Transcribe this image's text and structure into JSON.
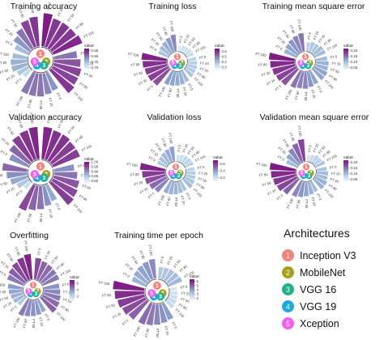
{
  "arch_colors": [
    "#f4837d",
    "#a5a11f",
    "#25b08c",
    "#1fa8e0",
    "#f25ff0"
  ],
  "colorbar_title": "value",
  "legend": {
    "title": "Architectures",
    "items": [
      {
        "num": "1",
        "label": "Inception V3"
      },
      {
        "num": "2",
        "label": "MobileNet"
      },
      {
        "num": "3",
        "label": "VGG 16"
      },
      {
        "num": "4",
        "label": "VGG 19"
      },
      {
        "num": "5",
        "label": "Xception"
      }
    ]
  },
  "chart_data": [
    {
      "type": "circular-bar",
      "title": "Training accuracy",
      "categories": [
        "FT 0",
        "FT 20",
        "FT 50",
        "FT 80",
        "FT 100"
      ],
      "colorbar_ticks": [
        "0.85",
        "0.80",
        "0.75",
        "0.70"
      ],
      "colorbar_range": [
        0.68,
        0.87
      ],
      "series": [
        {
          "values": [
            0.86,
            0.84,
            0.84,
            0.84,
            0.85
          ]
        },
        {
          "values": [
            0.8,
            0.82,
            0.83,
            0.83,
            0.84
          ]
        },
        {
          "values": [
            0.78,
            0.79,
            0.8,
            0.8,
            0.8
          ]
        },
        {
          "values": [
            0.72,
            0.74,
            0.76,
            0.76,
            0.75
          ]
        },
        {
          "values": [
            0.75,
            0.78,
            0.8,
            0.83,
            0.84
          ]
        }
      ]
    },
    {
      "type": "circular-bar",
      "title": "Training loss",
      "categories": [
        "FT 0",
        "FT 20",
        "FT 50",
        "FT 80",
        "FT 100"
      ],
      "colorbar_ticks": [
        "0.6",
        "0.5",
        "0.4",
        "0.3"
      ],
      "colorbar_range": [
        0.25,
        0.65
      ],
      "series": [
        {
          "values": [
            0.3,
            0.32,
            0.32,
            0.33,
            0.33
          ]
        },
        {
          "values": [
            0.35,
            0.36,
            0.37,
            0.37,
            0.38
          ]
        },
        {
          "values": [
            0.4,
            0.42,
            0.43,
            0.44,
            0.45
          ]
        },
        {
          "values": [
            0.55,
            0.57,
            0.58,
            0.6,
            0.62
          ]
        },
        {
          "values": [
            0.38,
            0.4,
            0.42,
            0.45,
            0.48
          ]
        }
      ]
    },
    {
      "type": "circular-bar",
      "title": "Training mean square error",
      "categories": [
        "FT 0",
        "FT 20",
        "FT 50",
        "FT 80",
        "FT 100"
      ],
      "colorbar_ticks": [
        "0.20",
        "0.15",
        "0.10",
        "0.05"
      ],
      "colorbar_range": [
        0.03,
        0.22
      ],
      "series": [
        {
          "values": [
            0.08,
            0.09,
            0.09,
            0.1,
            0.1
          ]
        },
        {
          "values": [
            0.1,
            0.11,
            0.11,
            0.12,
            0.12
          ]
        },
        {
          "values": [
            0.12,
            0.13,
            0.14,
            0.14,
            0.15
          ]
        },
        {
          "values": [
            0.17,
            0.18,
            0.19,
            0.2,
            0.21
          ]
        },
        {
          "values": [
            0.11,
            0.12,
            0.13,
            0.14,
            0.15
          ]
        }
      ]
    },
    {
      "type": "circular-bar",
      "title": "Validation accuracy",
      "categories": [
        "FT 0",
        "FT 20",
        "FT 50",
        "FT 80",
        "FT 100"
      ],
      "colorbar_ticks": [
        "1.00",
        "0.95",
        "0.90",
        "0.85",
        "0.80"
      ],
      "colorbar_range": [
        0.78,
        1.0
      ],
      "series": [
        {
          "values": [
            0.98,
            0.97,
            0.97,
            0.96,
            0.96
          ]
        },
        {
          "values": [
            0.9,
            0.92,
            0.94,
            0.95,
            0.96
          ]
        },
        {
          "values": [
            0.88,
            0.9,
            0.92,
            0.93,
            0.95
          ]
        },
        {
          "values": [
            0.82,
            0.85,
            0.88,
            0.9,
            0.93
          ]
        },
        {
          "values": [
            0.9,
            0.93,
            0.96,
            0.97,
            0.98
          ]
        }
      ]
    },
    {
      "type": "circular-bar",
      "title": "Validation loss",
      "categories": [
        "FT 0",
        "FT 20",
        "FT 50",
        "FT 80",
        "FT 100"
      ],
      "colorbar_ticks": [
        "0.6",
        "0.4",
        "0.2"
      ],
      "colorbar_range": [
        0.1,
        0.7
      ],
      "series": [
        {
          "values": [
            0.2,
            0.22,
            0.24,
            0.25,
            0.26
          ]
        },
        {
          "values": [
            0.25,
            0.27,
            0.28,
            0.3,
            0.32
          ]
        },
        {
          "values": [
            0.3,
            0.32,
            0.34,
            0.35,
            0.36
          ]
        },
        {
          "values": [
            0.45,
            0.5,
            0.55,
            0.6,
            0.65
          ]
        },
        {
          "values": [
            0.28,
            0.3,
            0.33,
            0.36,
            0.4
          ]
        }
      ]
    },
    {
      "type": "circular-bar",
      "title": "Validation mean square error",
      "categories": [
        "FT 0",
        "FT 20",
        "FT 50",
        "FT 80",
        "FT 100"
      ],
      "colorbar_ticks": [
        "0.20",
        "0.15",
        "0.10",
        "0.05"
      ],
      "colorbar_range": [
        0.03,
        0.22
      ],
      "series": [
        {
          "values": [
            0.06,
            0.07,
            0.08,
            0.08,
            0.09
          ]
        },
        {
          "values": [
            0.09,
            0.1,
            0.1,
            0.11,
            0.11
          ]
        },
        {
          "values": [
            0.1,
            0.11,
            0.12,
            0.13,
            0.14
          ]
        },
        {
          "values": [
            0.16,
            0.18,
            0.19,
            0.2,
            0.21
          ]
        },
        {
          "values": [
            0.1,
            0.12,
            0.14,
            0.16,
            0.18
          ]
        }
      ]
    },
    {
      "type": "circular-bar",
      "title": "Overfitting",
      "categories": [
        "FT 0",
        "FT 20",
        "FT 50",
        "FT 80",
        "FT 100"
      ],
      "colorbar_ticks": [
        "6",
        "4",
        "2"
      ],
      "colorbar_range": [
        0.5,
        7
      ],
      "series": [
        {
          "values": [
            5.5,
            5.0,
            4.8,
            4.6,
            4.5
          ]
        },
        {
          "values": [
            4.0,
            4.2,
            4.5,
            4.8,
            5.0
          ]
        },
        {
          "values": [
            3.5,
            3.8,
            4.0,
            4.2,
            4.5
          ]
        },
        {
          "values": [
            2.5,
            3.0,
            3.2,
            3.5,
            3.8
          ]
        },
        {
          "values": [
            4.5,
            5.0,
            5.5,
            6.0,
            6.5
          ]
        }
      ]
    },
    {
      "type": "circular-bar",
      "title": "Training time per epoch",
      "categories": [
        "FT 0",
        "FT 20",
        "FT 50",
        "FT 80",
        "FT 100"
      ],
      "colorbar_ticks": [
        "6",
        "5",
        "4",
        "3",
        "2"
      ],
      "colorbar_range": [
        1.5,
        6.5
      ],
      "series": [
        {
          "values": [
            3.0,
            3.1,
            3.2,
            3.3,
            3.4
          ]
        },
        {
          "values": [
            2.2,
            2.3,
            2.4,
            2.5,
            2.6
          ]
        },
        {
          "values": [
            4.0,
            4.2,
            4.4,
            4.6,
            4.8
          ]
        },
        {
          "values": [
            5.0,
            5.3,
            5.6,
            5.9,
            6.2
          ]
        },
        {
          "values": [
            3.5,
            3.7,
            3.9,
            4.1,
            4.3
          ]
        }
      ]
    }
  ]
}
